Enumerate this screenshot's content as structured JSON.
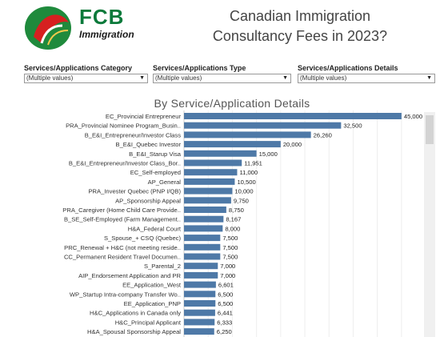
{
  "logo": {
    "main_text": "FCB",
    "sub_text": "Immigration"
  },
  "title": "Canadian Immigration Consultancy Fees in 2023?",
  "filters": [
    {
      "label": "Services/Applications Category",
      "value": "(Multiple values)"
    },
    {
      "label": "Services/Applications Type",
      "value": "(Multiple values)"
    },
    {
      "label": "Services/Applications Details",
      "value": "(Multiple values)"
    }
  ],
  "icons": {
    "dropdown": "chevron-down-icon",
    "logo": "maple-leaf-logo-icon"
  },
  "colors": {
    "bar": "#4e79a7",
    "title": "#444444",
    "logo_green": "#0c7a3b"
  },
  "chart_data": {
    "type": "bar",
    "orientation": "horizontal",
    "title": "By Service/Application Details",
    "xlim": [
      0,
      48000
    ],
    "grid": true,
    "categories": [
      "EC_Provincial Entrepreneur",
      "PRA_Provincial Nominee Program_Busin..",
      "B_E&I_Entrepreneur/Investor Class",
      "B_E&I_Quebec Investor",
      "B_E&I_Starup Visa",
      "B_E&I_Entrepreneur/Investor Class_Bor..",
      "EC_Self-employed",
      "AP_General",
      "PRA_Invester Quebec (PNP I/QB)",
      "AP_Sponsorship Appeal",
      "PRA_Caregiver (Home Child Care Provide..",
      "B_SE_Self-Employed (Farm Management..",
      "H&A_Federal Court",
      "S_Spouse_+ CSQ (Quebec)",
      "PRC_Renewal + H&C (not meeting reside..",
      "CC_Permanent Resident Travel Documen..",
      "S_Parental_2",
      "AIP_Endorsement Application and PR",
      "EE_Application_West",
      "WP_Startup Intra-company Transfer Wo..",
      "EE_Application_PNP",
      "H&C_Applications in Canada only",
      "H&C_Principal Applicant",
      "H&A_Spousal Sponsorship Appeal"
    ],
    "values": [
      45000,
      32500,
      26260,
      20000,
      15000,
      11951,
      11000,
      10500,
      10000,
      9750,
      8750,
      8167,
      8000,
      7500,
      7500,
      7500,
      7000,
      7000,
      6601,
      6500,
      6500,
      6441,
      6333,
      6250
    ],
    "labels": [
      "45,000",
      "32,500",
      "26,260",
      "20,000",
      "15,000",
      "11,951",
      "11,000",
      "10,500",
      "10,000",
      "9,750",
      "8,750",
      "8,167",
      "8,000",
      "7,500",
      "7,500",
      "7,500",
      "7,000",
      "7,000",
      "6,601",
      "6,500",
      "6,500",
      "6,441",
      "6,333",
      "6,250"
    ]
  }
}
